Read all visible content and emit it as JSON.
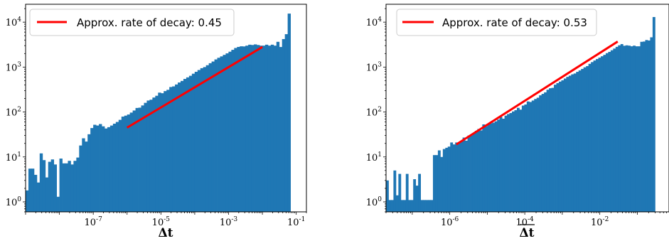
{
  "chart_data": [
    {
      "type": "bar",
      "subtype": "histogram",
      "xscale": "log",
      "yscale": "log",
      "xlabel": "Δt",
      "xlim": [
        1e-09,
        0.2
      ],
      "ylim": [
        0.6,
        25000
      ],
      "x_ticks": [
        {
          "exp": "-7",
          "value": 1e-07
        },
        {
          "exp": "-5",
          "value": 1e-05
        },
        {
          "exp": "-3",
          "value": 0.001
        },
        {
          "exp": "-1",
          "value": 0.1
        }
      ],
      "y_ticks": [
        {
          "exp": "0",
          "value": 1
        },
        {
          "exp": "1",
          "value": 10
        },
        {
          "exp": "2",
          "value": 100
        },
        {
          "exp": "3",
          "value": 1000
        },
        {
          "exp": "4",
          "value": 10000
        }
      ],
      "bar_color": "#1f77b4",
      "line_color": "#ff0000",
      "legend_label": "Approx. rate of decay: 0.45",
      "legend_position": "upper-left",
      "fit_line": {
        "x": [
          1e-06,
          0.01
        ],
        "y": [
          45,
          2800
        ]
      },
      "bins": {
        "x_start": 1e-09,
        "log_step": 0.0833,
        "counts": [
          1.8,
          5.5,
          5.5,
          4,
          2.7,
          12,
          8.5,
          3.5,
          7.8,
          8.8,
          6.8,
          1.3,
          9.2,
          7.2,
          7.2,
          8.2,
          6.8,
          8.2,
          9.7,
          18,
          26,
          22,
          32,
          44,
          52,
          50,
          54,
          48,
          43,
          46,
          50,
          55,
          60,
          67,
          79,
          83,
          88,
          97,
          108,
          123,
          125,
          140,
          160,
          180,
          188,
          210,
          230,
          270,
          262,
          292,
          312,
          360,
          372,
          410,
          454,
          492,
          545,
          590,
          640,
          712,
          785,
          860,
          945,
          1000,
          1100,
          1220,
          1330,
          1480,
          1610,
          1730,
          1870,
          2020,
          2200,
          2420,
          2660,
          2810,
          2900,
          2880,
          3000,
          3150,
          3100,
          3200,
          3100,
          3000,
          3000,
          3150,
          3000,
          3150,
          3000,
          3650,
          2800,
          4200,
          5400,
          15500
        ]
      }
    },
    {
      "type": "bar",
      "subtype": "histogram",
      "xscale": "log",
      "yscale": "log",
      "xlabel": "Δt",
      "xlabel_overline": true,
      "xlim": [
        2e-08,
        0.7
      ],
      "ylim": [
        0.6,
        25000
      ],
      "x_ticks": [
        {
          "exp": "-6",
          "value": 1e-06
        },
        {
          "exp": "-4",
          "value": 0.0001
        },
        {
          "exp": "-2",
          "value": 0.01
        }
      ],
      "y_ticks": [
        {
          "exp": "0",
          "value": 1
        },
        {
          "exp": "1",
          "value": 10
        },
        {
          "exp": "2",
          "value": 100
        },
        {
          "exp": "3",
          "value": 1000
        },
        {
          "exp": "4",
          "value": 10000
        }
      ],
      "bar_color": "#1f77b4",
      "line_color": "#ff0000",
      "legend_label": "Approx. rate of decay: 0.53",
      "legend_position": "upper-left",
      "fit_line": {
        "x": [
          1.5e-06,
          0.03
        ],
        "y": [
          19,
          3700
        ]
      },
      "bins": {
        "x_start": 2e-08,
        "log_step": 0.0658,
        "counts": [
          3,
          1.1,
          1.1,
          5,
          1.4,
          4.2,
          1.1,
          1.1,
          4.2,
          1.1,
          1.1,
          3.2,
          2.3,
          4.2,
          1.1,
          1.1,
          1.1,
          1.1,
          1.1,
          11,
          11,
          14,
          10,
          15,
          16,
          17,
          21,
          19,
          21,
          21,
          22,
          27,
          23,
          30,
          30,
          34,
          38,
          42,
          39,
          53,
          48,
          54,
          56,
          58,
          62,
          68,
          78,
          71,
          83,
          90,
          95,
          103,
          110,
          124,
          113,
          139,
          147,
          172,
          167,
          180,
          195,
          208,
          235,
          253,
          274,
          313,
          338,
          345,
          405,
          440,
          475,
          508,
          555,
          605,
          644,
          690,
          720,
          783,
          842,
          910,
          987,
          1050,
          1180,
          1290,
          1400,
          1510,
          1620,
          1740,
          1870,
          2040,
          2180,
          2370,
          2580,
          2820,
          3050,
          3250,
          2980,
          3050,
          3000,
          2900,
          3000,
          2900,
          2900,
          3650,
          3700,
          4000,
          3900,
          4600,
          13000
        ]
      }
    }
  ]
}
